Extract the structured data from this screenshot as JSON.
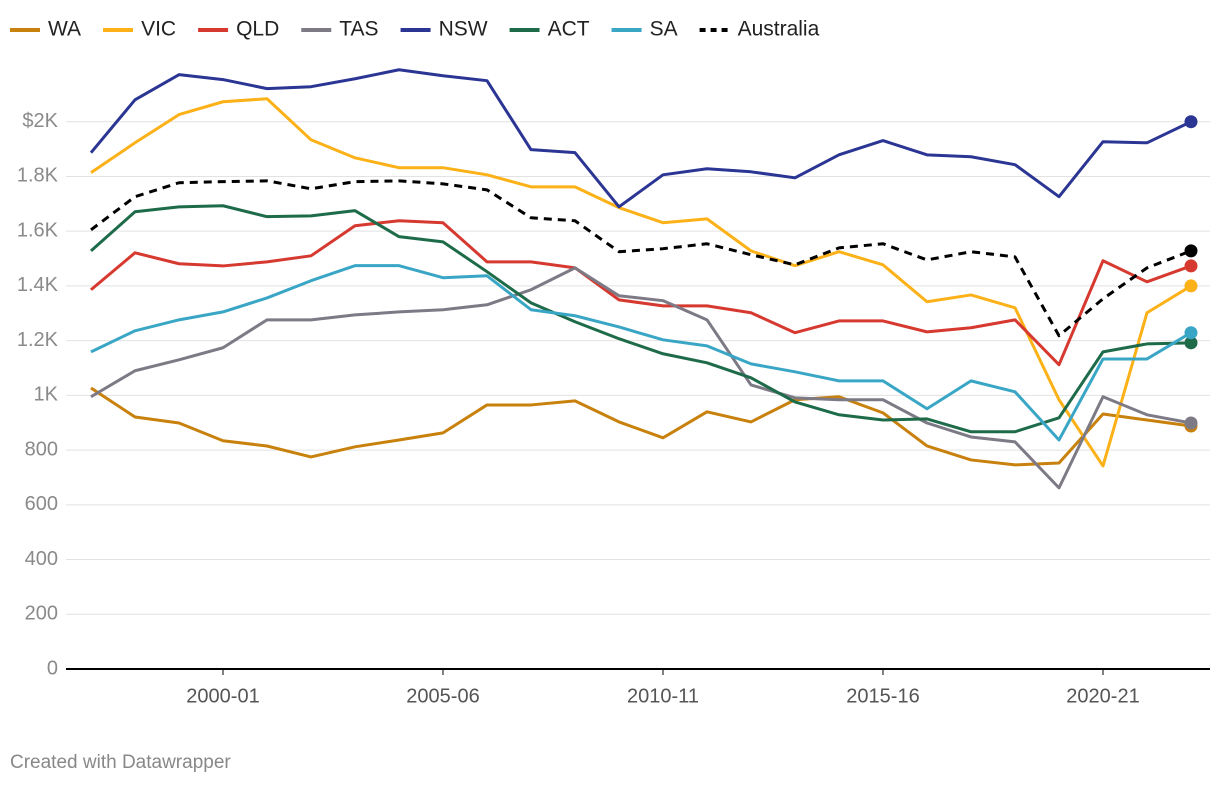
{
  "chart_data": {
    "type": "line",
    "footer": "Created with Datawrapper",
    "categories": [
      null,
      null,
      null,
      "2000-01",
      null,
      null,
      null,
      null,
      "2005-06",
      null,
      null,
      null,
      null,
      "2010-11",
      null,
      null,
      null,
      null,
      "2015-16",
      null,
      null,
      null,
      null,
      "2020-21",
      null,
      null
    ],
    "ylim": [
      0,
      2200
    ],
    "yticks": [
      0,
      200,
      400,
      600,
      800,
      {
        "value": 1000,
        "label": "1K"
      },
      {
        "value": 1200,
        "label": "1.2K"
      },
      {
        "value": 1400,
        "label": "1.4K"
      },
      {
        "value": 1600,
        "label": "1.6K"
      },
      {
        "value": 1800,
        "label": "1.8K"
      },
      {
        "value": 2000,
        "label": "$2K"
      }
    ],
    "grid": true,
    "legend": "top",
    "series": [
      {
        "name": "WA",
        "color": "#c8810c",
        "values": [
          1027,
          921,
          899,
          834,
          815,
          775,
          812,
          837,
          863,
          965,
          965,
          980,
          903,
          845,
          940,
          903,
          984,
          995,
          936,
          815,
          764,
          746,
          753,
          932,
          910,
          888
        ]
      },
      {
        "name": "VIC",
        "color": "#fbb117",
        "values": [
          1814,
          1923,
          2026,
          2073,
          2084,
          1934,
          1868,
          1832,
          1832,
          1806,
          1762,
          1762,
          1686,
          1631,
          1645,
          1528,
          1474,
          1525,
          1477,
          1342,
          1367,
          1320,
          984,
          742,
          1302,
          1400
        ]
      },
      {
        "name": "QLD",
        "color": "#d6392f",
        "values": [
          1386,
          1521,
          1481,
          1473,
          1488,
          1510,
          1620,
          1638,
          1631,
          1488,
          1488,
          1466,
          1349,
          1327,
          1327,
          1302,
          1229,
          1272,
          1272,
          1232,
          1247,
          1276,
          1112,
          1492,
          1415,
          1473
        ]
      },
      {
        "name": "TAS",
        "color": "#7d7a86",
        "values": [
          995,
          1090,
          1130,
          1174,
          1276,
          1276,
          1294,
          1305,
          1313,
          1331,
          1386,
          1466,
          1364,
          1346,
          1276,
          1038,
          991,
          984,
          984,
          899,
          848,
          830,
          662,
          995,
          929,
          899
        ]
      },
      {
        "name": "NSW",
        "color": "#2b3593",
        "values": [
          1887,
          2080,
          2172,
          2154,
          2121,
          2128,
          2157,
          2190,
          2168,
          2150,
          1898,
          1887,
          1689,
          1806,
          1828,
          1817,
          1795,
          1879,
          1931,
          1879,
          1872,
          1843,
          1726,
          1927,
          1923,
          2000
        ]
      },
      {
        "name": "ACT",
        "color": "#1e6b4a",
        "values": [
          1528,
          1671,
          1689,
          1693,
          1653,
          1656,
          1675,
          1580,
          1561,
          1452,
          1338,
          1269,
          1207,
          1152,
          1119,
          1064,
          976,
          929,
          910,
          914,
          867,
          867,
          918,
          1159,
          1188,
          1192
        ]
      },
      {
        "name": "SA",
        "color": "#3aa6c6",
        "values": [
          1159,
          1236,
          1276,
          1305,
          1356,
          1419,
          1474,
          1474,
          1430,
          1437,
          1313,
          1291,
          1250,
          1203,
          1181,
          1115,
          1086,
          1053,
          1053,
          951,
          1053,
          1013,
          837,
          1133,
          1133,
          1229
        ]
      },
      {
        "name": "Australia",
        "color": "#000000",
        "dashed": true,
        "values": [
          1605,
          1726,
          1777,
          1781,
          1784,
          1755,
          1781,
          1784,
          1773,
          1751,
          1649,
          1638,
          1525,
          1536,
          1554,
          1514,
          1477,
          1539,
          1554,
          1495,
          1525,
          1506,
          1218,
          1353,
          1466,
          1528
        ]
      }
    ]
  }
}
